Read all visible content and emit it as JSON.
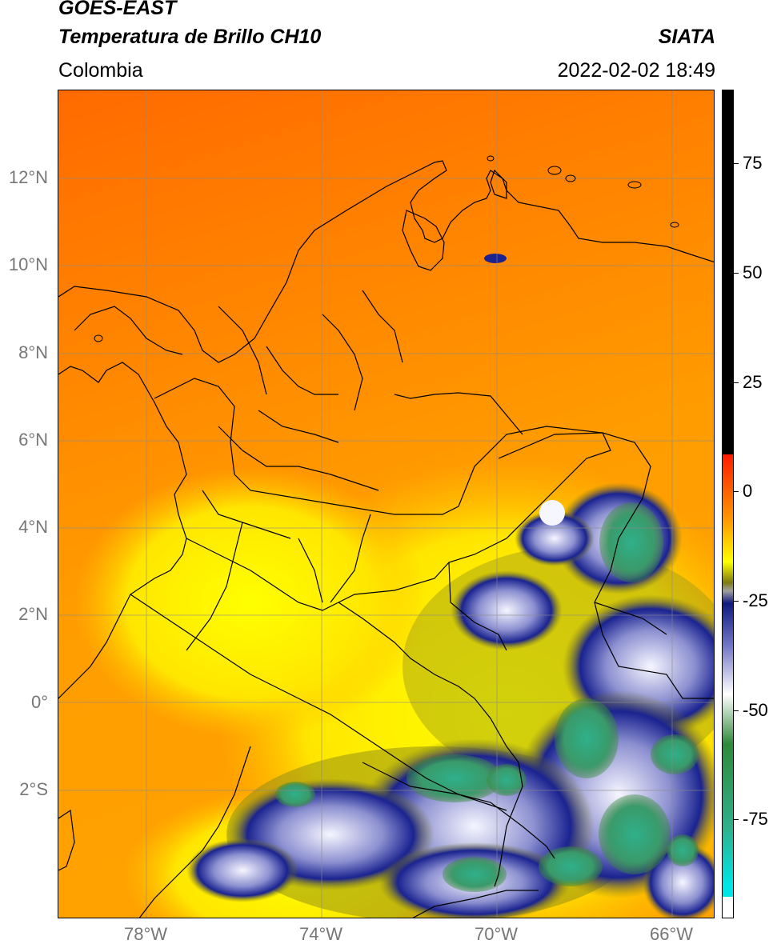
{
  "header": {
    "satellite": "GOES-EAST",
    "product": "Temperatura de Brillo CH10",
    "region": "Colombia",
    "source": "SIATA",
    "timestamp": "2022-02-02 18:49"
  },
  "map": {
    "lat_range": [
      -5.0,
      14.0
    ],
    "lon_range": [
      -80.0,
      -65.0
    ],
    "gridlines": true,
    "lat_ticks": [
      {
        "value": 12,
        "label": "12°N"
      },
      {
        "value": 10,
        "label": "10°N"
      },
      {
        "value": 8,
        "label": "8°N"
      },
      {
        "value": 6,
        "label": "6°N"
      },
      {
        "value": 4,
        "label": "4°N"
      },
      {
        "value": 2,
        "label": "2°N"
      },
      {
        "value": 0,
        "label": "0°"
      },
      {
        "value": -2,
        "label": "2°S"
      }
    ],
    "lon_ticks": [
      {
        "value": -78,
        "label": "78°W"
      },
      {
        "value": -74,
        "label": "74°W"
      },
      {
        "value": -70,
        "label": "70°W"
      },
      {
        "value": -66,
        "label": "66°W"
      }
    ]
  },
  "colorbar": {
    "range": [
      -100,
      90
    ],
    "ticks": [
      {
        "value": 75,
        "label": "75"
      },
      {
        "value": 50,
        "label": "50"
      },
      {
        "value": 25,
        "label": "25"
      },
      {
        "value": 0,
        "label": "0"
      },
      {
        "value": -25,
        "label": "-25"
      },
      {
        "value": -50,
        "label": "-50"
      },
      {
        "value": -75,
        "label": "-75"
      }
    ],
    "colors": {
      "black": "#000000",
      "red": "#ff1a00",
      "orange": "#ff9a00",
      "yellow": "#ffff00",
      "olive": "#7d7a10",
      "navy": "#101a80",
      "blue": "#6f74c4",
      "white": "#ffffff",
      "green": "#2f8a3a",
      "teal": "#2fb08a",
      "cyan": "#00e5e5"
    }
  }
}
